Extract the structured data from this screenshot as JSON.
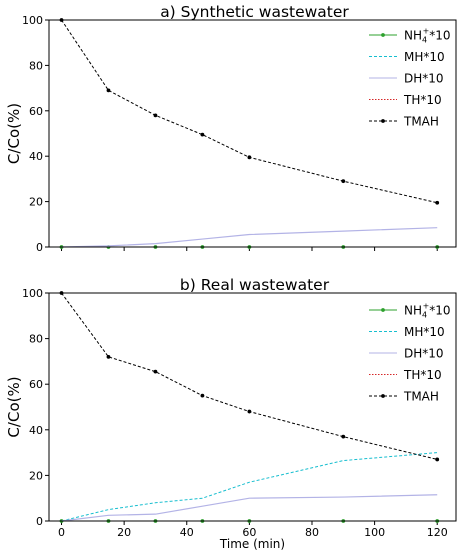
{
  "colors": {
    "NH4": "#2ca02c",
    "MH": "#17becf",
    "DH": "#b3b3e6",
    "TH": "#d62728",
    "TMAH": "#000000"
  },
  "chart_data": [
    {
      "type": "line",
      "title": "a) Synthetic wastewater",
      "xlabel": "",
      "ylabel": "C/Co(%)",
      "xlim": [
        -4,
        126
      ],
      "ylim": [
        0,
        100
      ],
      "xticks": [
        "0",
        "20",
        "40",
        "60",
        "80",
        "100",
        "120"
      ],
      "yticks": [
        "0",
        "20",
        "40",
        "60",
        "80",
        "100"
      ],
      "x_tick_labels_shown": false,
      "grid": false,
      "legend": "top-right",
      "series": [
        {
          "name_main": "NH",
          "name_sub": "4",
          "name_sup": "+",
          "name_suffix": "*10",
          "key": "NH4",
          "style": "solid",
          "marker": true,
          "x": [
            0,
            15,
            30,
            45,
            60,
            90,
            120
          ],
          "y": [
            0,
            0,
            0,
            0,
            0,
            0,
            0
          ]
        },
        {
          "name": "MH*10",
          "key": "MH",
          "style": "dashed",
          "marker": false,
          "x": [
            0,
            15,
            30,
            45,
            60,
            90,
            120
          ],
          "y": [
            0,
            0,
            0,
            0,
            0,
            0,
            0
          ]
        },
        {
          "name": "DH*10",
          "key": "DH",
          "style": "solid",
          "marker": false,
          "x": [
            0,
            15,
            30,
            45,
            60,
            90,
            120
          ],
          "y": [
            0,
            0.5,
            1.5,
            3.5,
            5.5,
            7,
            8.5
          ]
        },
        {
          "name": "TH*10",
          "key": "TH",
          "style": "dotted",
          "marker": false,
          "x": [
            0,
            15,
            30,
            45,
            60,
            90,
            120
          ],
          "y": [
            0,
            0,
            0,
            0,
            0,
            0,
            0
          ]
        },
        {
          "name": "TMAH",
          "key": "TMAH",
          "style": "dashed",
          "marker": true,
          "x": [
            0,
            15,
            30,
            45,
            60,
            90,
            120
          ],
          "y": [
            100,
            69,
            58,
            49.5,
            39.5,
            29,
            19.5
          ]
        }
      ]
    },
    {
      "type": "line",
      "title": "b) Real wastewater",
      "xlabel": "Time (min)",
      "ylabel": "C/Co(%)",
      "xlim": [
        -4,
        126
      ],
      "ylim": [
        0,
        100
      ],
      "xticks": [
        "0",
        "20",
        "40",
        "60",
        "80",
        "100",
        "120"
      ],
      "yticks": [
        "0",
        "20",
        "40",
        "60",
        "80",
        "100"
      ],
      "x_tick_labels_shown": true,
      "grid": false,
      "legend": "top-right",
      "series": [
        {
          "name_main": "NH",
          "name_sub": "4",
          "name_sup": "+",
          "name_suffix": "*10",
          "key": "NH4",
          "style": "solid",
          "marker": true,
          "x": [
            0,
            15,
            30,
            45,
            60,
            90,
            120
          ],
          "y": [
            0,
            0,
            0,
            0,
            0,
            0,
            0
          ]
        },
        {
          "name": "MH*10",
          "key": "MH",
          "style": "dashed",
          "marker": false,
          "x": [
            0,
            15,
            30,
            45,
            60,
            90,
            120
          ],
          "y": [
            0,
            5,
            8,
            10,
            17,
            26.5,
            30
          ]
        },
        {
          "name": "DH*10",
          "key": "DH",
          "style": "solid",
          "marker": false,
          "x": [
            0,
            15,
            30,
            45,
            60,
            90,
            120
          ],
          "y": [
            0,
            2.5,
            3,
            6.5,
            10,
            10.5,
            11.5
          ]
        },
        {
          "name": "TH*10",
          "key": "TH",
          "style": "dotted",
          "marker": false,
          "x": [
            0,
            15,
            30,
            45,
            60,
            90,
            120
          ],
          "y": [
            0,
            0,
            0,
            0,
            0,
            0,
            0
          ]
        },
        {
          "name": "TMAH",
          "key": "TMAH",
          "style": "dashed",
          "marker": true,
          "x": [
            0,
            15,
            30,
            45,
            60,
            90,
            120
          ],
          "y": [
            100,
            72,
            65.5,
            55,
            48,
            37,
            27
          ]
        }
      ]
    }
  ]
}
